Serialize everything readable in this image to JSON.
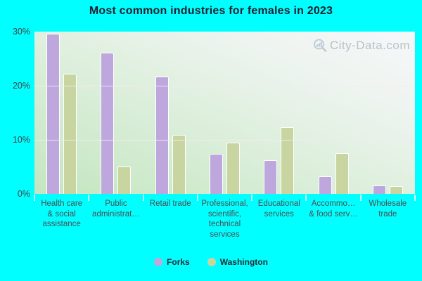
{
  "title": "Most common industries for females in 2023",
  "watermark": "City-Data.com",
  "colors": {
    "page_background": "#00ffff",
    "forks_bar": "#bda7dd",
    "washington_bar": "#c8d5a0",
    "plot_gradient_bottom_left": "#c3e6c0",
    "plot_gradient_top_right": "#f5f7f9",
    "gridline": "#f6e8f2",
    "title_text": "#1e1e2b",
    "axis_text": "#4c4c52"
  },
  "y_axis": {
    "tick_labels": [
      "30%",
      "20%",
      "10%",
      "0%"
    ],
    "min": 0,
    "max": 30
  },
  "chart_data": {
    "type": "bar",
    "title": "Most common industries for females in 2023",
    "categories": [
      "Health care & social assistance",
      "Public administrat…",
      "Retail trade",
      "Professional, scientific, technical services",
      "Educational services",
      "Accommo… & food serv…",
      "Wholesale trade"
    ],
    "category_label_lines": [
      [
        "Health care",
        "& social",
        "assistance"
      ],
      [
        "Public",
        "administrat…"
      ],
      [
        "Retail trade"
      ],
      [
        "Professional,",
        "scientific,",
        "technical",
        "services"
      ],
      [
        "Educational",
        "services"
      ],
      [
        "Accommo…",
        "& food serv…"
      ],
      [
        "Wholesale",
        "trade"
      ]
    ],
    "series": [
      {
        "name": "Forks",
        "color": "#bda7dd",
        "values": [
          29.6,
          26.1,
          21.7,
          7.4,
          6.3,
          3.3,
          1.6
        ]
      },
      {
        "name": "Washington",
        "color": "#c8d5a0",
        "values": [
          22.2,
          5.1,
          10.9,
          9.5,
          12.4,
          7.5,
          1.4
        ]
      }
    ],
    "xlabel": "",
    "ylabel": "",
    "ylim": [
      0,
      30
    ],
    "grid": true,
    "gridline_values": [
      10,
      20
    ],
    "legend_position": "bottom"
  }
}
